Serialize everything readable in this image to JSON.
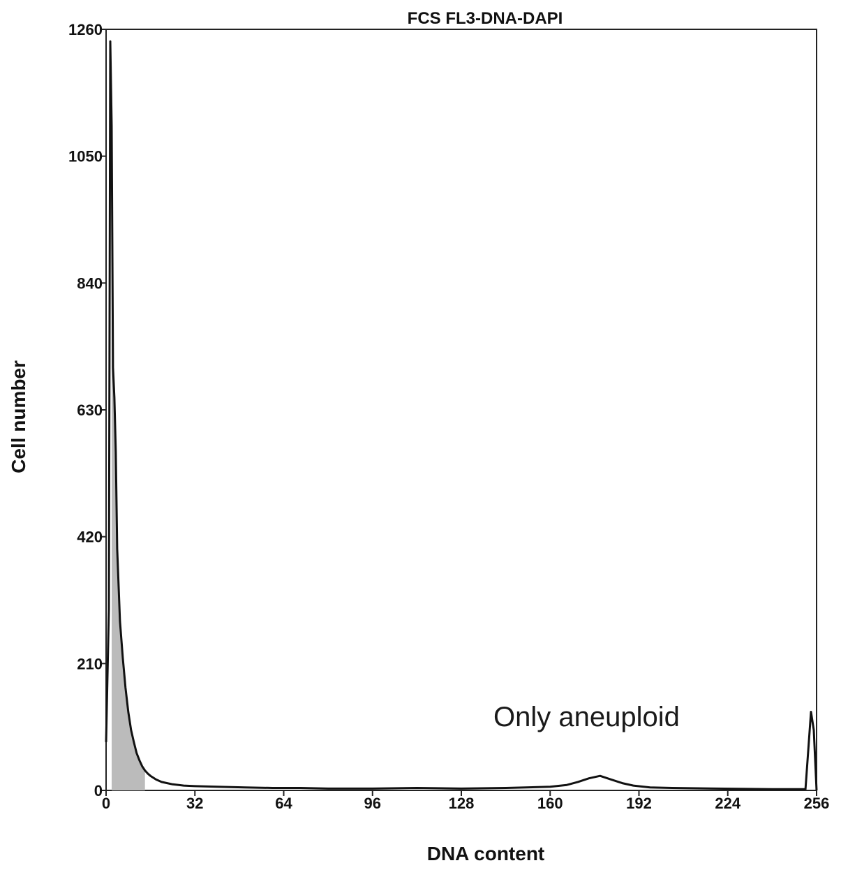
{
  "chart_data": {
    "type": "area",
    "title": "FCS FL3-DNA-DAPI",
    "xlabel": "DNA content",
    "ylabel": "Cell number",
    "xlim": [
      0,
      256
    ],
    "ylim": [
      0,
      1260
    ],
    "xticks": [
      0,
      32,
      64,
      96,
      128,
      160,
      192,
      224,
      256
    ],
    "yticks": [
      0,
      210,
      420,
      630,
      840,
      1050,
      1260
    ],
    "grid": false,
    "annotation": "Only aneuploid",
    "series": [
      {
        "values_x": [
          0,
          1,
          1.5,
          2,
          2.5,
          3,
          3.5,
          4,
          5,
          6,
          7,
          8,
          9,
          10,
          11,
          12,
          13,
          14,
          15,
          16,
          18,
          20,
          22,
          24,
          28,
          32,
          40,
          50,
          60,
          70,
          80,
          96,
          112,
          128,
          144,
          160,
          166,
          170,
          174,
          178,
          182,
          186,
          190,
          196,
          204,
          220,
          240,
          252,
          254,
          255,
          256
        ],
        "values_y": [
          80,
          300,
          1240,
          1100,
          700,
          650,
          560,
          400,
          280,
          220,
          170,
          130,
          100,
          80,
          62,
          50,
          40,
          33,
          28,
          24,
          18,
          14,
          12,
          10,
          8,
          7,
          6,
          5,
          4,
          4,
          3,
          3,
          4,
          3,
          4,
          6,
          9,
          14,
          20,
          24,
          18,
          12,
          8,
          5,
          4,
          3,
          2,
          2,
          130,
          100,
          0
        ]
      }
    ],
    "shaded_region_x": [
      2,
      14
    ]
  }
}
